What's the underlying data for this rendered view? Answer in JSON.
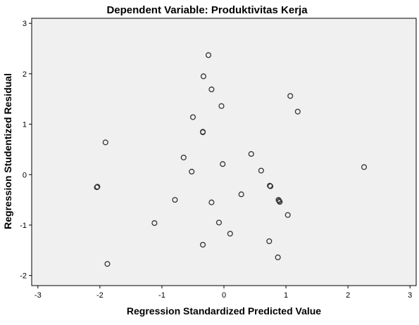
{
  "chart_data": {
    "type": "scatter",
    "title": "Dependent Variable: Produktivitas Kerja",
    "xlabel": "Regression Standardized Predicted Value",
    "ylabel": "Regression Studentized Residual",
    "xlim": [
      -3.1,
      3.1
    ],
    "ylim": [
      -2.2,
      3.1
    ],
    "xticks": [
      -3,
      -2,
      -1,
      0,
      1,
      2,
      3
    ],
    "yticks": [
      3,
      2,
      1,
      0,
      -1,
      -2
    ],
    "grid": false,
    "plot_background": "#f0f0f0",
    "marker_color": "#333333",
    "marker": "hollow-circle",
    "points": [
      {
        "x": -0.25,
        "y": 2.37
      },
      {
        "x": -0.33,
        "y": 1.95
      },
      {
        "x": -0.2,
        "y": 1.69
      },
      {
        "x": -0.04,
        "y": 1.36
      },
      {
        "x": 1.07,
        "y": 1.56
      },
      {
        "x": 1.19,
        "y": 1.25
      },
      {
        "x": -0.5,
        "y": 1.14
      },
      {
        "x": -0.34,
        "y": 0.85
      },
      {
        "x": -0.34,
        "y": 0.84
      },
      {
        "x": -1.91,
        "y": 0.64
      },
      {
        "x": -0.65,
        "y": 0.34
      },
      {
        "x": 0.44,
        "y": 0.41
      },
      {
        "x": -0.02,
        "y": 0.21
      },
      {
        "x": -0.52,
        "y": 0.06
      },
      {
        "x": 0.6,
        "y": 0.08
      },
      {
        "x": 2.26,
        "y": 0.15
      },
      {
        "x": -2.04,
        "y": -0.24
      },
      {
        "x": -2.05,
        "y": -0.25
      },
      {
        "x": 0.74,
        "y": -0.22
      },
      {
        "x": 0.75,
        "y": -0.23
      },
      {
        "x": 0.28,
        "y": -0.39
      },
      {
        "x": -0.79,
        "y": -0.5
      },
      {
        "x": -0.2,
        "y": -0.55
      },
      {
        "x": 0.88,
        "y": -0.5
      },
      {
        "x": 0.89,
        "y": -0.52
      },
      {
        "x": 0.9,
        "y": -0.54
      },
      {
        "x": 1.03,
        "y": -0.8
      },
      {
        "x": -1.12,
        "y": -0.96
      },
      {
        "x": -0.08,
        "y": -0.95
      },
      {
        "x": 0.1,
        "y": -1.17
      },
      {
        "x": 0.73,
        "y": -1.32
      },
      {
        "x": -0.34,
        "y": -1.39
      },
      {
        "x": 0.87,
        "y": -1.64
      },
      {
        "x": -1.88,
        "y": -1.77
      }
    ]
  }
}
